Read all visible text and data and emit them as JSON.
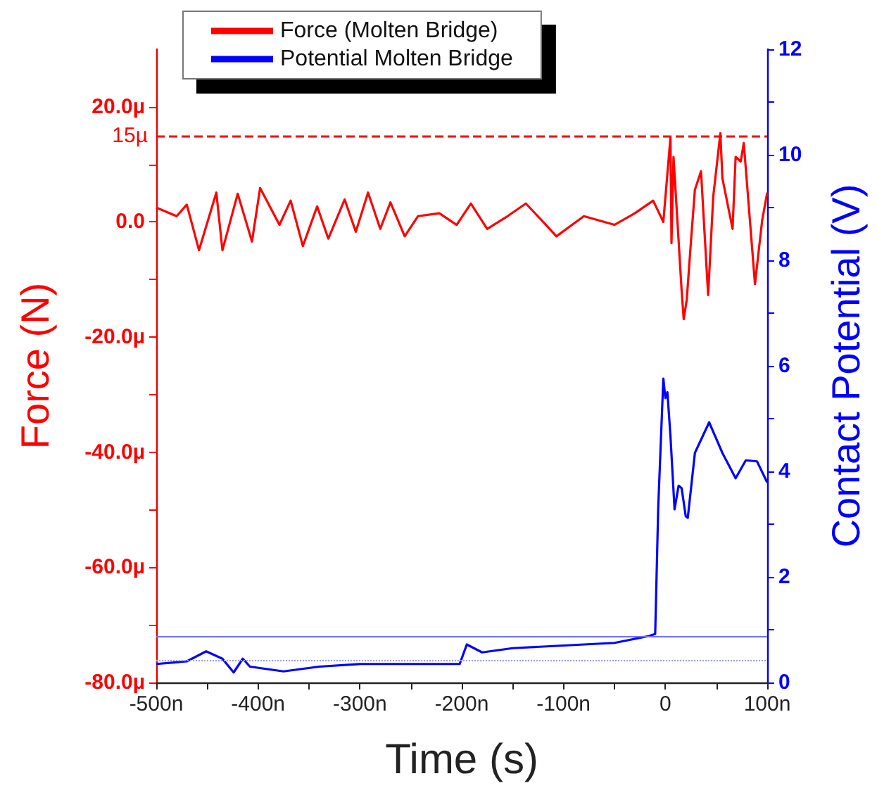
{
  "chart_data": {
    "type": "line",
    "xlabel": "Time (s)",
    "ylabel": "Force (N)",
    "y2label": "Contact Potential (V)",
    "xlim": [
      -500,
      100
    ],
    "xticks": [
      {
        "value": -500,
        "label": "-500n"
      },
      {
        "value": -450,
        "label": null
      },
      {
        "value": -400,
        "label": "-400n"
      },
      {
        "value": -350,
        "label": null
      },
      {
        "value": -300,
        "label": "-300n"
      },
      {
        "value": -250,
        "label": null
      },
      {
        "value": -200,
        "label": "-200n"
      },
      {
        "value": -150,
        "label": null
      },
      {
        "value": -100,
        "label": "-100n"
      },
      {
        "value": -50,
        "label": null
      },
      {
        "value": 0,
        "label": "0"
      },
      {
        "value": 50,
        "label": null
      },
      {
        "value": 100,
        "label": "100n"
      }
    ],
    "ylim": [
      -80,
      30
    ],
    "yticks": [
      {
        "value": -80,
        "label": "-80.0µ"
      },
      {
        "value": -70,
        "label": null
      },
      {
        "value": -60,
        "label": "-60.0µ"
      },
      {
        "value": -50,
        "label": null
      },
      {
        "value": -40,
        "label": "-40.0µ"
      },
      {
        "value": -30,
        "label": null
      },
      {
        "value": -20,
        "label": "-20.0µ"
      },
      {
        "value": -10,
        "label": null
      },
      {
        "value": 0,
        "label": "0.0"
      },
      {
        "value": 10,
        "label": null
      },
      {
        "value": 20,
        "label": "20.0µ"
      }
    ],
    "y2lim": [
      0,
      12
    ],
    "y2ticks": [
      0,
      {
        "value": 1,
        "label": null
      },
      2,
      {
        "value": 3,
        "label": null
      },
      4,
      {
        "value": 5,
        "label": null
      },
      6,
      {
        "value": 7,
        "label": null
      },
      8,
      {
        "value": 9,
        "label": null
      },
      10,
      {
        "value": 11,
        "label": null
      },
      12
    ],
    "grid": false,
    "legend": "top",
    "marker": "none",
    "line_style": "solid",
    "ref_lines": [
      {
        "axis": "y",
        "value": 15,
        "label": "15µ",
        "color": "#ff0000",
        "line_style": "dashed"
      },
      {
        "axis": "y2",
        "value": 0.88,
        "label": null,
        "color": "#6f6fff",
        "line_style": "solid"
      },
      {
        "axis": "y2",
        "value": 0.43,
        "label": null,
        "color": "#9a9aff",
        "line_style": "dotted"
      }
    ],
    "series": [
      {
        "name": "Force (Molten Bridge)",
        "color": "#ff0000",
        "axis": "y",
        "x": [
          -500,
          -480,
          -470,
          -458,
          -441,
          -435,
          -420,
          -406,
          -398,
          -379,
          -368,
          -356,
          -342,
          -331,
          -315,
          -304,
          -292,
          -280,
          -270,
          -256,
          -243,
          -222,
          -205,
          -191,
          -175,
          -155,
          -137,
          -120,
          -107,
          -80,
          -50,
          -30,
          -12,
          -2,
          5,
          6,
          8,
          16,
          18,
          21,
          25,
          29,
          35,
          42,
          47,
          54,
          56,
          66,
          69,
          74,
          77,
          88,
          95,
          100
        ],
        "values": [
          2.5,
          1,
          3,
          -4.9,
          5.1,
          -4.9,
          4.9,
          -3.4,
          5.9,
          -0.5,
          3.7,
          -4.2,
          2.7,
          -2.9,
          3.9,
          -1.7,
          5.1,
          -1.2,
          3.4,
          -2.5,
          1,
          1.5,
          -0.5,
          3.2,
          -1.2,
          1,
          3.2,
          0,
          -2.5,
          1,
          -0.5,
          1.5,
          3.7,
          0,
          14.7,
          -3.7,
          11.3,
          -12,
          -16.9,
          -13.5,
          -3.7,
          5.6,
          8.8,
          -12.7,
          4.4,
          15.4,
          7.6,
          -1.2,
          11.3,
          10.5,
          13.7,
          -10.8,
          0.2,
          5.1
        ]
      },
      {
        "name": "Potential Molten Bridge",
        "color": "#0000ff",
        "axis": "y2",
        "x": [
          -500,
          -470,
          -451,
          -435,
          -424,
          -415,
          -408,
          -375,
          -340,
          -300,
          -260,
          -202,
          -195,
          -180,
          -150,
          -100,
          -50,
          -16,
          -10,
          -7,
          -2,
          0,
          2,
          5,
          9,
          13,
          16,
          20,
          22,
          29,
          43,
          56,
          69,
          79,
          90,
          100
        ],
        "values": [
          0.35,
          0.4,
          0.59,
          0.45,
          0.19,
          0.45,
          0.3,
          0.21,
          0.3,
          0.35,
          0.35,
          0.35,
          0.72,
          0.57,
          0.65,
          0.7,
          0.75,
          0.88,
          0.92,
          3.33,
          5.76,
          5.39,
          5.5,
          4.67,
          3.28,
          3.73,
          3.68,
          3.15,
          3.12,
          4.35,
          4.93,
          4.35,
          3.87,
          4.21,
          4.19,
          3.79
        ]
      }
    ]
  }
}
